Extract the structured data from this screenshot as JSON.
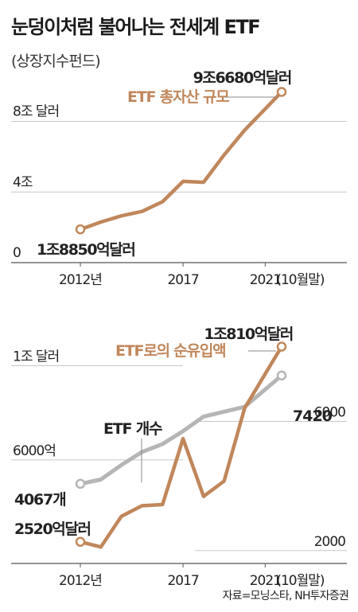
{
  "header": {
    "title": "눈덩이처럼 불어나는 전세계 ETF",
    "subtitle": "(상장지수펀드)"
  },
  "source": "자료=모닝스타, NH투자증권",
  "colors": {
    "brown": "#c0875b",
    "gray": "#b5b5b5",
    "grid": "#c7c7c7",
    "axis": "#555555"
  },
  "chart_data": [
    {
      "type": "line",
      "title": "",
      "x": [
        2012,
        2013,
        2014,
        2015,
        2016,
        2017,
        2018,
        2019,
        2020,
        2021.8
      ],
      "xlim": [
        2012,
        2021.8
      ],
      "ylim": [
        0,
        9.6
      ],
      "ytick_values": [
        0,
        4,
        8
      ],
      "ytick_labels": [
        "0",
        "4조",
        "8조 달러"
      ],
      "xtick_values": [
        2012,
        2017,
        2021
      ],
      "xtick_labels": [
        "2012년",
        "2017",
        "2021"
      ],
      "x_end_label": "(10월말)",
      "series": [
        {
          "name": "ETF 총자산 규모",
          "color": "#c0875b",
          "values": [
            1.885,
            2.3,
            2.65,
            2.9,
            3.45,
            4.6,
            4.55,
            6.1,
            7.5,
            9.668
          ]
        }
      ],
      "annotations": {
        "start": "1조8850억달러",
        "end": "9조6680억달러"
      }
    },
    {
      "type": "line",
      "title": "",
      "x": [
        2012,
        2013,
        2014,
        2015,
        2016,
        2017,
        2018,
        2019,
        2020,
        2021.8
      ],
      "xlim": [
        2012,
        2021.8
      ],
      "xtick_values": [
        2012,
        2017,
        2021
      ],
      "xtick_labels": [
        "2012년",
        "2017",
        "2021"
      ],
      "x_end_label": "(10월말)",
      "left_axis": {
        "ylim": [
          1600,
          11200
        ],
        "tick_values": [
          6000,
          10000
        ],
        "tick_labels": [
          "6000억",
          "1조 달러"
        ]
      },
      "right_axis": {
        "ylim": [
          1600,
          8600
        ],
        "tick_values": [
          2000,
          6000
        ],
        "tick_labels": [
          "2000",
          "6000"
        ]
      },
      "series": [
        {
          "name": "ETF로의 순유입액",
          "axis": "left",
          "color": "#c0875b",
          "values": [
            2520,
            2300,
            3600,
            4050,
            4100,
            6900,
            4450,
            5100,
            8200,
            10810
          ]
        },
        {
          "name": "ETF 개수",
          "axis": "right",
          "color": "#b5b5b5",
          "values": [
            4067,
            4200,
            4650,
            5050,
            5300,
            5700,
            6150,
            6300,
            6450,
            7420
          ]
        }
      ],
      "annotations": {
        "inflow_start": "2520억달러",
        "inflow_end": "1조810억달러",
        "count_start": "4067개",
        "count_end": "7420"
      }
    }
  ]
}
